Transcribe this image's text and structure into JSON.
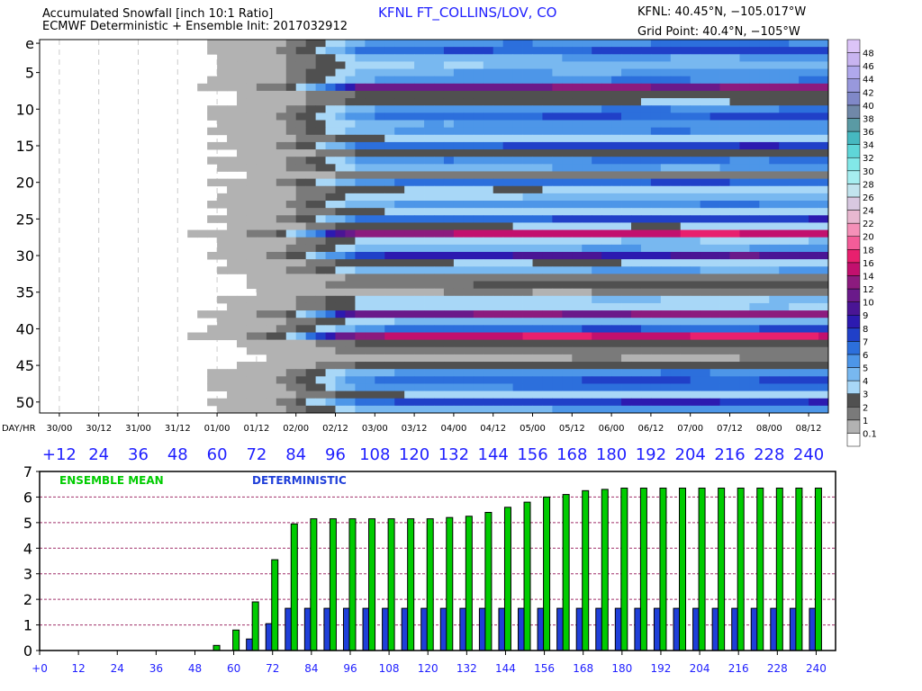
{
  "header": {
    "title_line1": "Accumulated Snowfall [inch 10:1 Ratio]",
    "title_line2": "ECMWF Deterministic + Ensemble Init: 2017032912",
    "station": "KFNL FT_COLLINS/LOV, CO",
    "station_coords": "KFNL: 40.45°N, −105.017°W",
    "grid_point": "Grid Point: 40.4°N, −105°W"
  },
  "colors": {
    "ensemble_mean": "#00cc00",
    "deterministic": "#1f3fd9",
    "label_blue": "#2020ff",
    "gridline": "#a0306a"
  },
  "chart_data": [
    {
      "type": "heatmap",
      "title": "Accumulated Snowfall [inch 10:1 Ratio]",
      "x_label": "DAY/HR",
      "x_tick_labels": [
        "30/00",
        "30/12",
        "31/00",
        "31/12",
        "01/00",
        "01/12",
        "02/00",
        "02/12",
        "03/00",
        "03/12",
        "04/00",
        "04/12",
        "05/00",
        "05/12",
        "06/00",
        "06/12",
        "07/00",
        "07/12",
        "08/00",
        "08/12"
      ],
      "forecast_hour_labels": [
        "+12",
        "24",
        "36",
        "48",
        "60",
        "72",
        "84",
        "96",
        "108",
        "120",
        "132",
        "144",
        "156",
        "168",
        "180",
        "192",
        "204",
        "216",
        "228",
        "240"
      ],
      "y_tick_labels": [
        "e",
        "5",
        "10",
        "15",
        "20",
        "25",
        "30",
        "35",
        "40",
        "45",
        "50"
      ],
      "colorbar_levels": [
        "0.1",
        "1",
        "2",
        "3",
        "4",
        "5",
        "6",
        "7",
        "8",
        "9",
        "10",
        "12",
        "14",
        "16",
        "18",
        "20",
        "22",
        "24",
        "26",
        "28",
        "30",
        "32",
        "34",
        "36",
        "38",
        "40",
        "42",
        "44",
        "46",
        "48"
      ],
      "colorbar_colors": [
        "#ffffff",
        "#b2b2b2",
        "#7a7a7a",
        "#505050",
        "#a8d7f7",
        "#78b8f0",
        "#4d96e8",
        "#2c6fdc",
        "#2040c8",
        "#2c1ab0",
        "#4a1595",
        "#6a1a8a",
        "#8c1b7e",
        "#c2106e",
        "#e8206e",
        "#f45c98",
        "#f590b8",
        "#e8b8d0",
        "#d8c8e0",
        "#c2e4ee",
        "#a6eef0",
        "#82e8e8",
        "#5fd6d8",
        "#46b8c0",
        "#5a9aa4",
        "#7088a8",
        "#8088c8",
        "#9898dc",
        "#b0a8ec",
        "#c8b4f0",
        "#dcc4f8"
      ],
      "members": 51,
      "steps": 20,
      "member_final_inches": [
        6.2,
        7.5,
        5.2,
        4.5,
        5.4,
        6.0,
        12.5,
        2.8,
        3.0,
        6.0,
        7.2,
        5.6,
        5.8,
        3.5,
        7.6,
        2.6,
        6.3,
        5.2,
        1.8,
        6.9,
        3.4,
        4.3,
        5.8,
        3.5,
        7.6,
        3.2,
        15.5,
        4.0,
        5.0,
        9.5,
        3.2,
        5.1,
        1.5,
        2.2,
        1.1,
        4.0,
        3.8,
        12.8,
        4.6,
        7.0,
        16.5,
        2.6,
        1.6,
        1.0,
        2.5,
        5.8,
        7.2,
        6.6,
        3.4,
        8.1,
        5.4
      ]
    },
    {
      "type": "bar",
      "xlabel": "",
      "ylabel": "",
      "ylim": [
        0,
        7
      ],
      "y_ticks": [
        0,
        1,
        2,
        3,
        4,
        5,
        6,
        7
      ],
      "x_ticks": [
        "+0",
        "12",
        "24",
        "36",
        "48",
        "60",
        "72",
        "84",
        "96",
        "108",
        "120",
        "132",
        "144",
        "156",
        "168",
        "180",
        "192",
        "204",
        "216",
        "228",
        "240"
      ],
      "x": [
        54,
        60,
        66,
        72,
        78,
        84,
        90,
        96,
        102,
        108,
        114,
        120,
        126,
        132,
        138,
        144,
        150,
        156,
        162,
        168,
        174,
        180,
        186,
        192,
        198,
        204,
        210,
        216,
        222,
        228,
        234,
        240
      ],
      "series": [
        {
          "name": "ENSEMBLE MEAN",
          "color": "#00cc00",
          "values": [
            0.2,
            0.8,
            1.9,
            3.55,
            4.95,
            5.15,
            5.15,
            5.15,
            5.15,
            5.15,
            5.15,
            5.15,
            5.2,
            5.25,
            5.4,
            5.6,
            5.8,
            6.0,
            6.1,
            6.25,
            6.3,
            6.35,
            6.35,
            6.35,
            6.35,
            6.35,
            6.35,
            6.35,
            6.35,
            6.35,
            6.35,
            6.35
          ]
        },
        {
          "name": "DETERMINISTIC",
          "color": "#1f3fd9",
          "values": [
            0,
            0,
            0.45,
            1.05,
            1.65,
            1.65,
            1.65,
            1.65,
            1.65,
            1.65,
            1.65,
            1.65,
            1.65,
            1.65,
            1.65,
            1.65,
            1.65,
            1.65,
            1.65,
            1.65,
            1.65,
            1.65,
            1.65,
            1.65,
            1.65,
            1.65,
            1.65,
            1.65,
            1.65,
            1.65,
            1.65,
            1.65
          ]
        }
      ],
      "grid": true,
      "legend_placement": "top-left"
    }
  ]
}
